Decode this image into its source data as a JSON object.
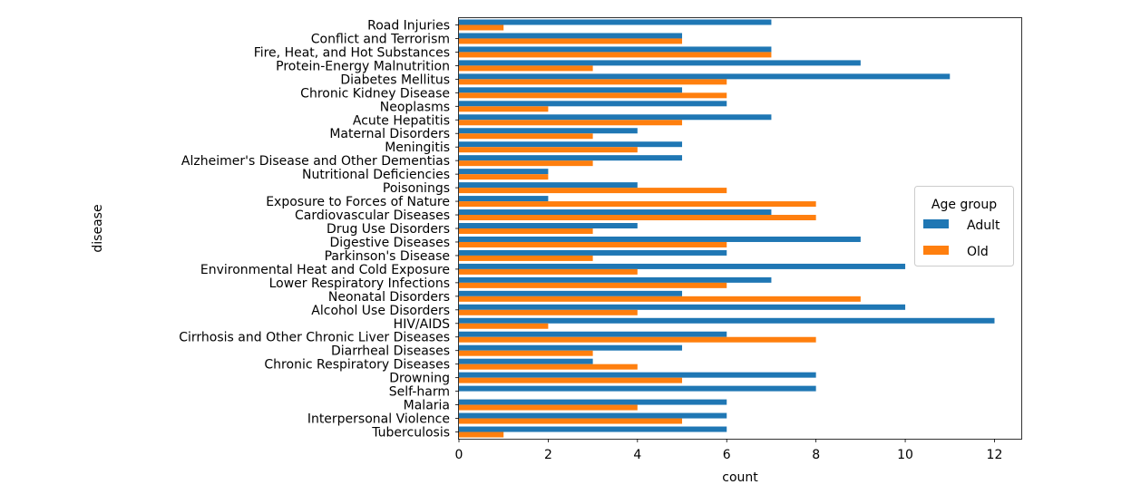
{
  "chart_data": {
    "type": "bar",
    "orientation": "horizontal",
    "xlabel": "count",
    "ylabel": "disease",
    "xlim": [
      0,
      12.6
    ],
    "xticks": [
      0,
      2,
      4,
      6,
      8,
      10,
      12
    ],
    "grid": false,
    "legend": {
      "title": "Age group",
      "placement": "center-right"
    },
    "categories": [
      "Road Injuries",
      "Conflict and Terrorism",
      "Fire, Heat, and Hot Substances",
      "Protein-Energy Malnutrition",
      "Diabetes Mellitus",
      "Chronic Kidney Disease",
      "Neoplasms",
      "Acute Hepatitis",
      "Maternal Disorders",
      "Meningitis",
      "Alzheimer's Disease and Other Dementias",
      "Nutritional Deficiencies",
      "Poisonings",
      "Exposure to Forces of Nature",
      "Cardiovascular Diseases",
      "Drug Use Disorders",
      "Digestive Diseases",
      "Parkinson's Disease",
      "Environmental Heat and Cold Exposure",
      "Lower Respiratory Infections",
      "Neonatal Disorders",
      "Alcohol Use Disorders",
      "HIV/AIDS",
      "Cirrhosis and Other Chronic Liver Diseases",
      "Diarrheal Diseases",
      "Chronic Respiratory Diseases",
      "Drowning",
      "Self-harm",
      "Malaria",
      "Interpersonal Violence",
      "Tuberculosis"
    ],
    "series": [
      {
        "name": "Adult",
        "color": "#1f77b4",
        "values": [
          7,
          5,
          7,
          9,
          11,
          5,
          6,
          7,
          4,
          5,
          5,
          2,
          4,
          2,
          7,
          4,
          9,
          6,
          10,
          7,
          5,
          10,
          12,
          6,
          5,
          3,
          8,
          8,
          6,
          6,
          6
        ]
      },
      {
        "name": "Old",
        "color": "#ff7f0e",
        "values": [
          1,
          5,
          7,
          3,
          6,
          6,
          2,
          5,
          3,
          4,
          3,
          2,
          6,
          8,
          8,
          3,
          6,
          3,
          4,
          6,
          9,
          4,
          2,
          8,
          3,
          4,
          5,
          0,
          4,
          5,
          1
        ]
      }
    ]
  }
}
